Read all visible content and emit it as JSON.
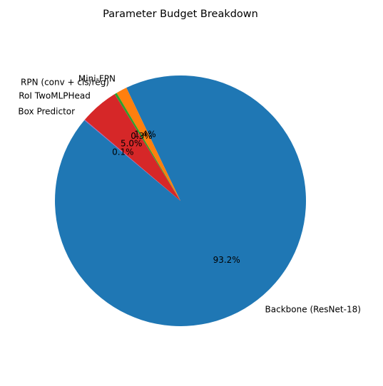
{
  "chart_data": {
    "type": "pie",
    "title": "Parameter Budget Breakdown",
    "start_angle_deg": 140,
    "direction": "counterclockwise",
    "slices": [
      {
        "label": "Backbone (ResNet-18)",
        "value": 93.2,
        "pct_label": "93.2%",
        "color": "#1f77b4"
      },
      {
        "label": "Mini-FPN",
        "value": 1.4,
        "pct_label": "1.4%",
        "color": "#ff7f0e"
      },
      {
        "label": "RPN (conv + cls/reg)",
        "value": 0.3,
        "pct_label": "0.3%",
        "color": "#2ca02c"
      },
      {
        "label": "RoI TwoMLPHead",
        "value": 5.0,
        "pct_label": "5.0%",
        "color": "#d62728"
      },
      {
        "label": "Box Predictor",
        "value": 0.1,
        "pct_label": "0.1%",
        "color": "#9467bd"
      }
    ]
  }
}
